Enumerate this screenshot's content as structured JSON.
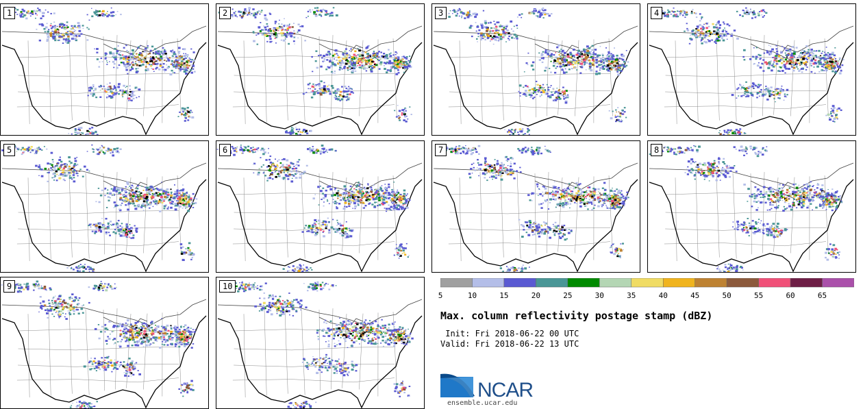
{
  "panels": [
    {
      "id": "1",
      "seed": 11
    },
    {
      "id": "2",
      "seed": 23
    },
    {
      "id": "3",
      "seed": 37
    },
    {
      "id": "4",
      "seed": 41
    },
    {
      "id": "5",
      "seed": 53
    },
    {
      "id": "6",
      "seed": 67
    },
    {
      "id": "7",
      "seed": 71
    },
    {
      "id": "8",
      "seed": 83
    },
    {
      "id": "9",
      "seed": 97
    },
    {
      "id": "10",
      "seed": 109
    }
  ],
  "legend": {
    "title": "Max. column reflectivity postage stamp (dBZ)",
    "init": " Init: Fri 2018-06-22 00 UTC",
    "valid": "Valid: Fri 2018-06-22 13 UTC",
    "ticks": [
      "5",
      "10",
      "15",
      "20",
      "25",
      "30",
      "35",
      "40",
      "45",
      "50",
      "55",
      "60",
      "65"
    ],
    "colors": [
      "#a0a0a0",
      "#b4bee8",
      "#5a5ad2",
      "#4a9696",
      "#008a00",
      "#b4d6b4",
      "#f0dc64",
      "#f0b41e",
      "#be8232",
      "#8c5a3c",
      "#f05078",
      "#6e1e46",
      "#aa50aa"
    ]
  },
  "brand": {
    "logo_text": "NCAR",
    "url": "ensemble.ucar.edu",
    "blue": "#1f5fa0"
  }
}
